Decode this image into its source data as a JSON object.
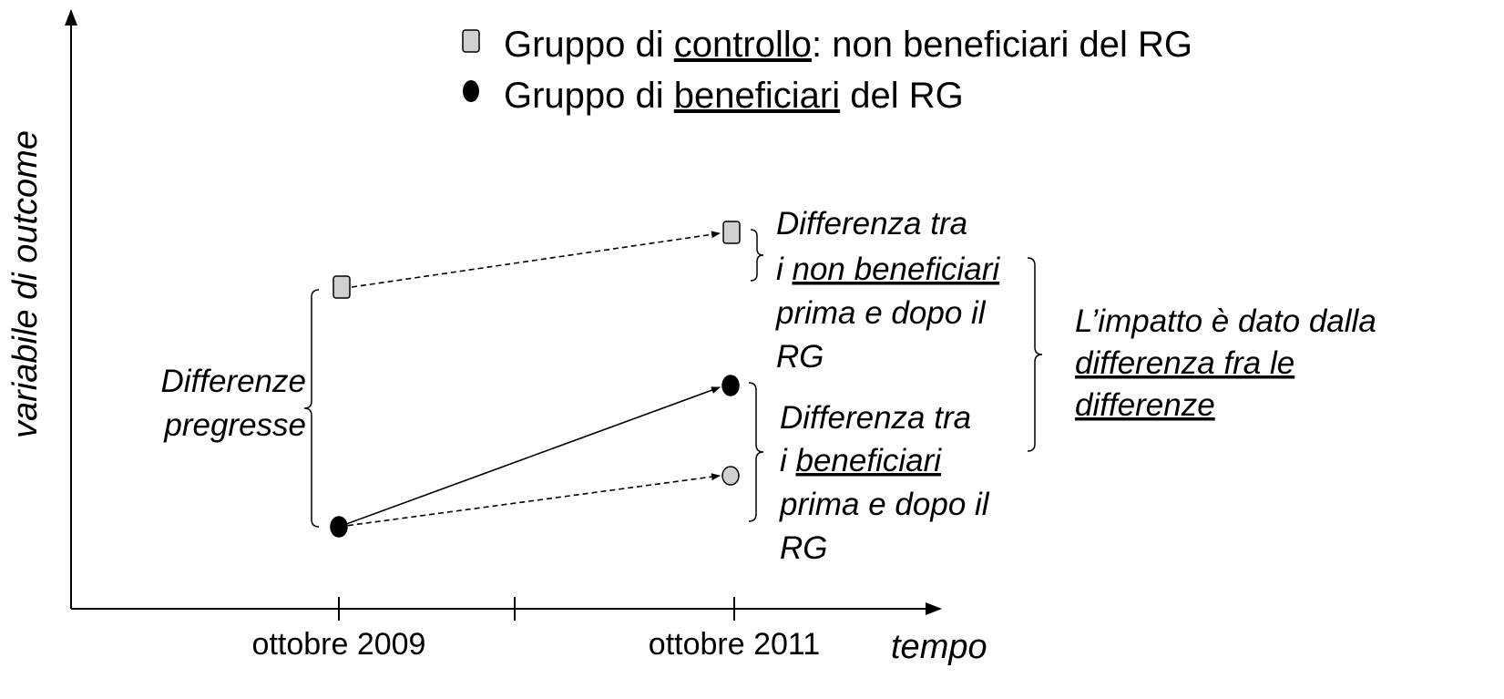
{
  "axes": {
    "y_label": "variabile di outcome",
    "x_label": "tempo",
    "x_ticks": [
      "ottobre 2009",
      "ottobre 2011"
    ]
  },
  "legend": [
    {
      "parts": [
        {
          "text": "Gruppo di ",
          "underline": false
        },
        {
          "text": "controllo",
          "underline": true
        },
        {
          "text": ": non beneficiari del RG",
          "underline": false
        }
      ]
    },
    {
      "parts": [
        {
          "text": "Gruppo di ",
          "underline": false
        },
        {
          "text": "beneficiari",
          "underline": true
        },
        {
          "text": " del RG",
          "underline": false
        }
      ]
    }
  ],
  "annotations": [
    {
      "lines": [
        [
          {
            "text": "Differenze",
            "underline": false
          }
        ],
        [
          {
            "text": "pregresse",
            "underline": false
          }
        ]
      ]
    },
    {
      "lines": [
        [
          {
            "text": "Differenza tra",
            "underline": false
          }
        ],
        [
          {
            "text": "i ",
            "underline": false
          },
          {
            "text": "non beneficiari",
            "underline": true
          }
        ],
        [
          {
            "text": "prima e dopo il",
            "underline": false
          }
        ],
        [
          {
            "text": "RG",
            "underline": false
          }
        ]
      ]
    },
    {
      "lines": [
        [
          {
            "text": "Differenza tra",
            "underline": false
          }
        ],
        [
          {
            "text": "i ",
            "underline": false
          },
          {
            "text": "beneficiari",
            "underline": true
          }
        ],
        [
          {
            "text": "prima e dopo il",
            "underline": false
          }
        ],
        [
          {
            "text": "RG",
            "underline": false
          }
        ]
      ]
    },
    {
      "lines": [
        [
          {
            "text": "L’impatto è dato dalla",
            "underline": false
          }
        ],
        [
          {
            "text": "differenza fra le",
            "underline": true
          }
        ],
        [
          {
            "text": "differenze",
            "underline": true
          }
        ]
      ]
    }
  ]
}
